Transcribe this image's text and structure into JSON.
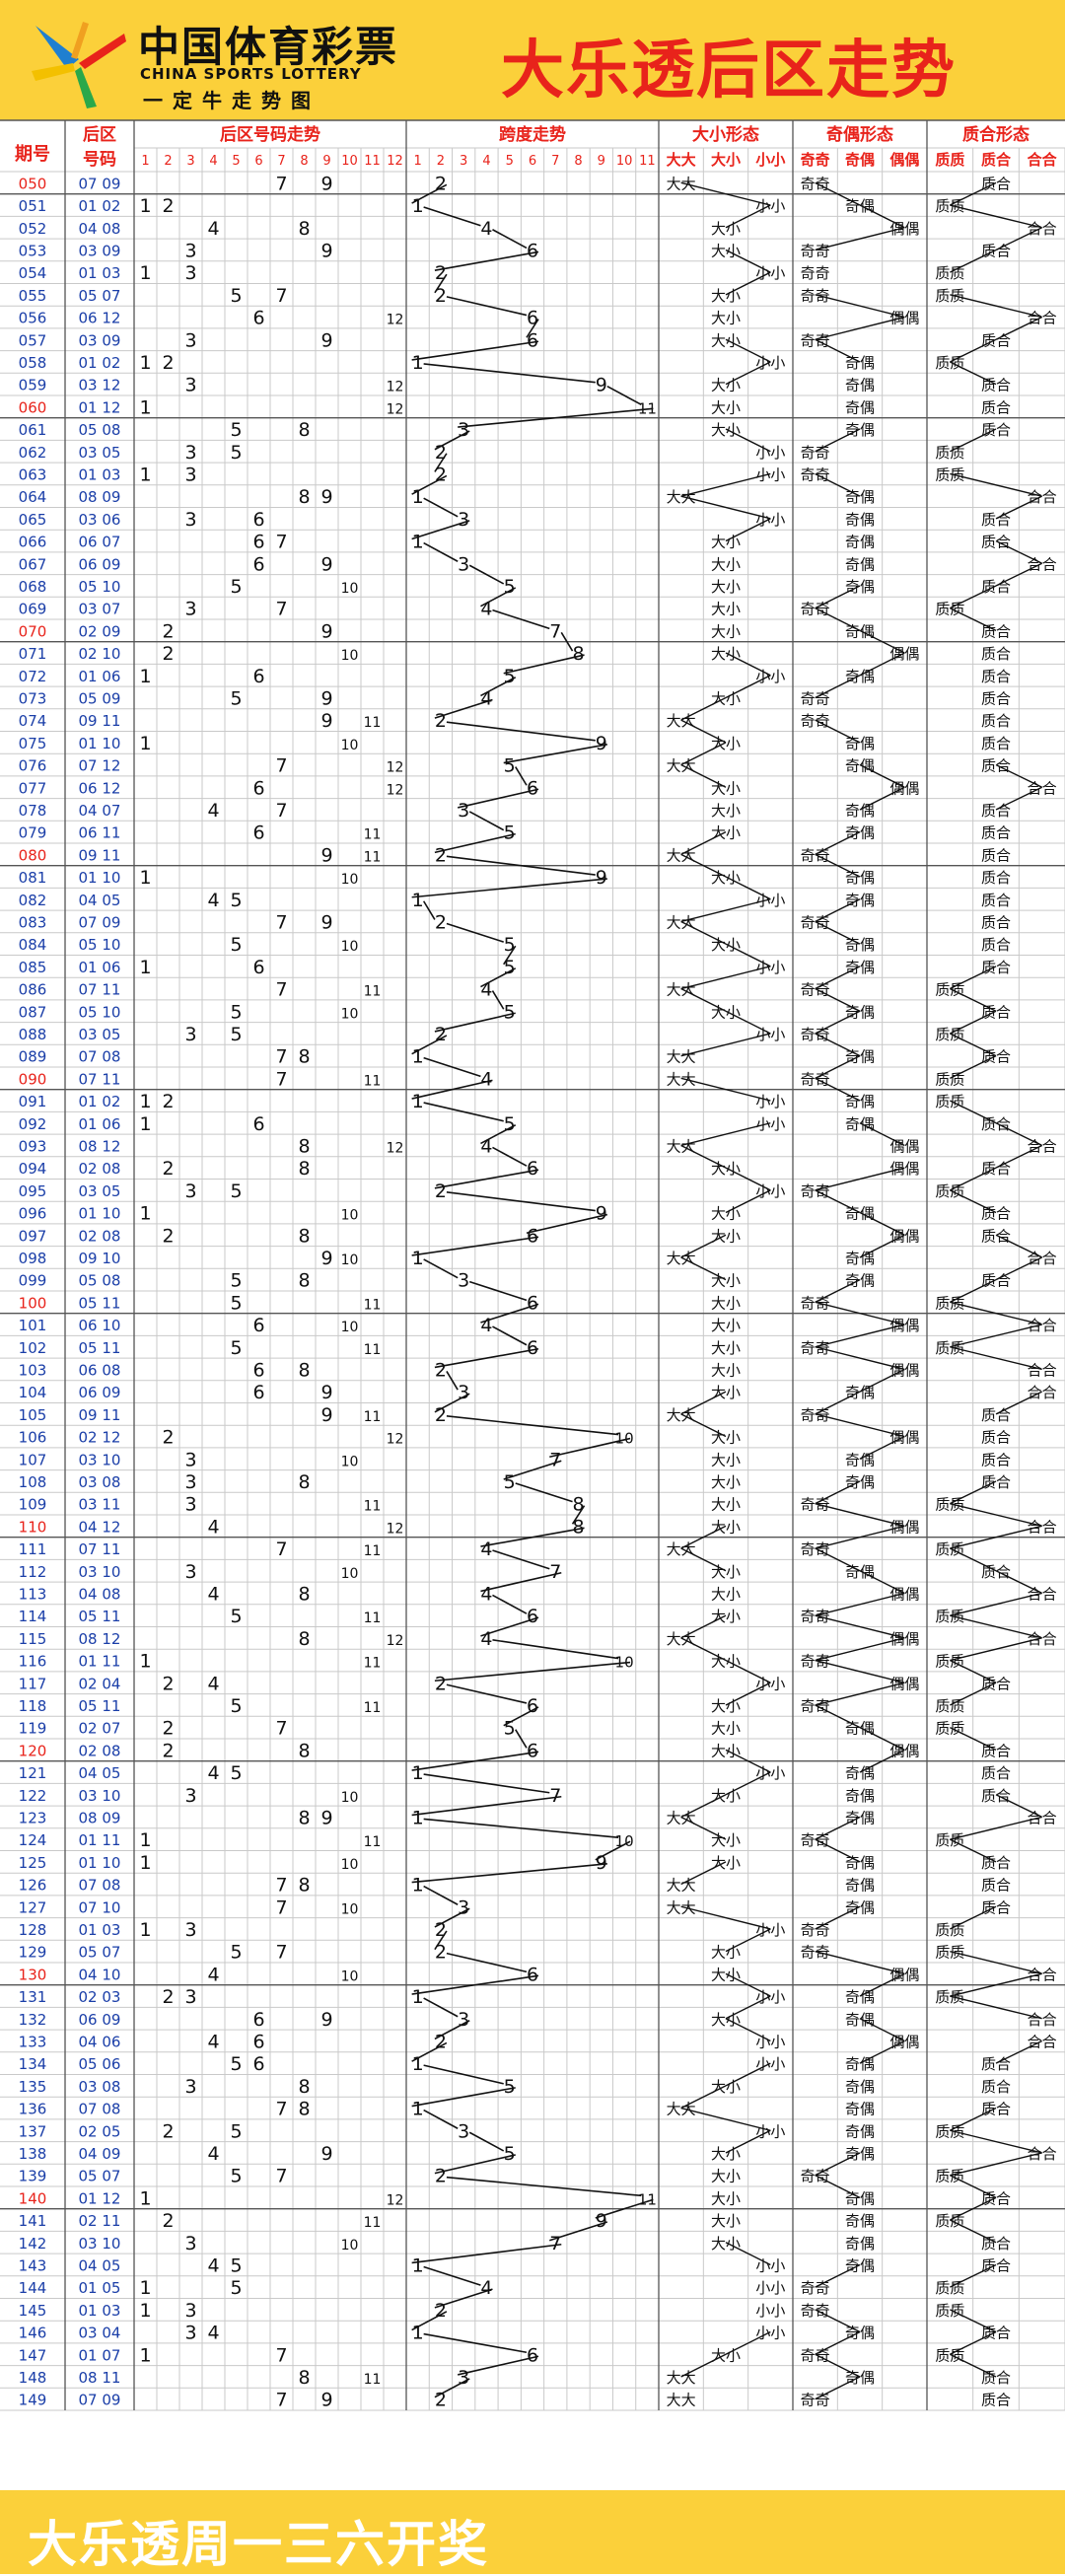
{
  "header": {
    "logo_cn": "中国体育彩票",
    "logo_en": "CHINA SPORTS LOTTERY",
    "logo_slogan": "一定牛走势图",
    "title": "大乐透后区走势"
  },
  "footer": {
    "text": "大乐透周一三六开奖"
  },
  "colors": {
    "header_bg": "#fbd03a",
    "title_red": "#e8231b",
    "period_blue": "#1a3ea8",
    "header_text_red": "#e8231b"
  },
  "columns": {
    "period": "期号",
    "back_number_top": "后区",
    "back_number_bottom": "号码",
    "trend": "后区号码走势",
    "span": "跨度走势",
    "size": "大小形态",
    "parity": "奇偶形态",
    "prime": "质合形态",
    "trend_ticks": [
      "1",
      "2",
      "3",
      "4",
      "5",
      "6",
      "7",
      "8",
      "9",
      "10",
      "11",
      "12"
    ],
    "span_ticks": [
      "1",
      "2",
      "3",
      "4",
      "5",
      "6",
      "7",
      "8",
      "9",
      "10",
      "11"
    ],
    "size_sub": [
      "大大",
      "大小",
      "小小"
    ],
    "parity_sub": [
      "奇奇",
      "奇偶",
      "偶偶"
    ],
    "prime_sub": [
      "质质",
      "质合",
      "合合"
    ]
  },
  "chart_data": {
    "type": "table",
    "title": "大乐透后区走势",
    "rows": [
      {
        "period": "050",
        "a": 7,
        "b": 9
      },
      {
        "period": "051",
        "a": 1,
        "b": 2
      },
      {
        "period": "052",
        "a": 4,
        "b": 8
      },
      {
        "period": "053",
        "a": 3,
        "b": 9
      },
      {
        "period": "054",
        "a": 1,
        "b": 3
      },
      {
        "period": "055",
        "a": 5,
        "b": 7
      },
      {
        "period": "056",
        "a": 6,
        "b": 12
      },
      {
        "period": "057",
        "a": 3,
        "b": 9
      },
      {
        "period": "058",
        "a": 1,
        "b": 2
      },
      {
        "period": "059",
        "a": 3,
        "b": 12
      },
      {
        "period": "060",
        "a": 1,
        "b": 12
      },
      {
        "period": "061",
        "a": 5,
        "b": 8
      },
      {
        "period": "062",
        "a": 3,
        "b": 5
      },
      {
        "period": "063",
        "a": 1,
        "b": 3
      },
      {
        "period": "064",
        "a": 8,
        "b": 9
      },
      {
        "period": "065",
        "a": 3,
        "b": 6
      },
      {
        "period": "066",
        "a": 6,
        "b": 7
      },
      {
        "period": "067",
        "a": 6,
        "b": 9
      },
      {
        "period": "068",
        "a": 5,
        "b": 10
      },
      {
        "period": "069",
        "a": 3,
        "b": 7
      },
      {
        "period": "070",
        "a": 2,
        "b": 9
      },
      {
        "period": "071",
        "a": 2,
        "b": 10
      },
      {
        "period": "072",
        "a": 1,
        "b": 6
      },
      {
        "period": "073",
        "a": 5,
        "b": 9
      },
      {
        "period": "074",
        "a": 9,
        "b": 11
      },
      {
        "period": "075",
        "a": 1,
        "b": 10
      },
      {
        "period": "076",
        "a": 7,
        "b": 12
      },
      {
        "period": "077",
        "a": 6,
        "b": 12
      },
      {
        "period": "078",
        "a": 4,
        "b": 7
      },
      {
        "period": "079",
        "a": 6,
        "b": 11
      },
      {
        "period": "080",
        "a": 9,
        "b": 11
      },
      {
        "period": "081",
        "a": 1,
        "b": 10
      },
      {
        "period": "082",
        "a": 4,
        "b": 5
      },
      {
        "period": "083",
        "a": 7,
        "b": 9
      },
      {
        "period": "084",
        "a": 5,
        "b": 10
      },
      {
        "period": "085",
        "a": 1,
        "b": 6
      },
      {
        "period": "086",
        "a": 7,
        "b": 11
      },
      {
        "period": "087",
        "a": 5,
        "b": 10
      },
      {
        "period": "088",
        "a": 3,
        "b": 5
      },
      {
        "period": "089",
        "a": 7,
        "b": 8
      },
      {
        "period": "090",
        "a": 7,
        "b": 11
      },
      {
        "period": "091",
        "a": 1,
        "b": 2
      },
      {
        "period": "092",
        "a": 1,
        "b": 6
      },
      {
        "period": "093",
        "a": 8,
        "b": 12
      },
      {
        "period": "094",
        "a": 2,
        "b": 8
      },
      {
        "period": "095",
        "a": 3,
        "b": 5
      },
      {
        "period": "096",
        "a": 1,
        "b": 10
      },
      {
        "period": "097",
        "a": 2,
        "b": 8
      },
      {
        "period": "098",
        "a": 9,
        "b": 10
      },
      {
        "period": "099",
        "a": 5,
        "b": 8
      },
      {
        "period": "100",
        "a": 5,
        "b": 11
      },
      {
        "period": "101",
        "a": 6,
        "b": 10
      },
      {
        "period": "102",
        "a": 5,
        "b": 11
      },
      {
        "period": "103",
        "a": 6,
        "b": 8
      },
      {
        "period": "104",
        "a": 6,
        "b": 9
      },
      {
        "period": "105",
        "a": 9,
        "b": 11
      },
      {
        "period": "106",
        "a": 2,
        "b": 12
      },
      {
        "period": "107",
        "a": 3,
        "b": 10
      },
      {
        "period": "108",
        "a": 3,
        "b": 8
      },
      {
        "period": "109",
        "a": 3,
        "b": 11
      },
      {
        "period": "110",
        "a": 4,
        "b": 12
      },
      {
        "period": "111",
        "a": 7,
        "b": 11
      },
      {
        "period": "112",
        "a": 3,
        "b": 10
      },
      {
        "period": "113",
        "a": 4,
        "b": 8
      },
      {
        "period": "114",
        "a": 5,
        "b": 11
      },
      {
        "period": "115",
        "a": 8,
        "b": 12
      },
      {
        "period": "116",
        "a": 1,
        "b": 11
      },
      {
        "period": "117",
        "a": 2,
        "b": 4
      },
      {
        "period": "118",
        "a": 5,
        "b": 11
      },
      {
        "period": "119",
        "a": 2,
        "b": 7
      },
      {
        "period": "120",
        "a": 2,
        "b": 8
      },
      {
        "period": "121",
        "a": 4,
        "b": 5
      },
      {
        "period": "122",
        "a": 3,
        "b": 10
      },
      {
        "period": "123",
        "a": 8,
        "b": 9
      },
      {
        "period": "124",
        "a": 1,
        "b": 11
      },
      {
        "period": "125",
        "a": 1,
        "b": 10
      },
      {
        "period": "126",
        "a": 7,
        "b": 8
      },
      {
        "period": "127",
        "a": 7,
        "b": 10
      },
      {
        "period": "128",
        "a": 1,
        "b": 3
      },
      {
        "period": "129",
        "a": 5,
        "b": 7
      },
      {
        "period": "130",
        "a": 4,
        "b": 10
      },
      {
        "period": "131",
        "a": 2,
        "b": 3
      },
      {
        "period": "132",
        "a": 6,
        "b": 9
      },
      {
        "period": "133",
        "a": 4,
        "b": 6
      },
      {
        "period": "134",
        "a": 5,
        "b": 6
      },
      {
        "period": "135",
        "a": 3,
        "b": 8
      },
      {
        "period": "136",
        "a": 7,
        "b": 8
      },
      {
        "period": "137",
        "a": 2,
        "b": 5
      },
      {
        "period": "138",
        "a": 4,
        "b": 9
      },
      {
        "period": "139",
        "a": 5,
        "b": 7
      },
      {
        "period": "140",
        "a": 1,
        "b": 12
      },
      {
        "period": "141",
        "a": 2,
        "b": 11
      },
      {
        "period": "142",
        "a": 3,
        "b": 10
      },
      {
        "period": "143",
        "a": 4,
        "b": 5
      },
      {
        "period": "144",
        "a": 1,
        "b": 5
      },
      {
        "period": "145",
        "a": 1,
        "b": 3
      },
      {
        "period": "146",
        "a": 3,
        "b": 4
      },
      {
        "period": "147",
        "a": 1,
        "b": 7
      },
      {
        "period": "148",
        "a": 8,
        "b": 11
      },
      {
        "period": "149",
        "a": 7,
        "b": 9
      }
    ],
    "size_labels": [
      "大大",
      "大小",
      "小小"
    ],
    "parity_labels": [
      "奇奇",
      "奇偶",
      "偶偶"
    ],
    "prime_labels": [
      "质质",
      "质合",
      "合合"
    ],
    "red_periods": [
      "050",
      "060",
      "070",
      "080",
      "090",
      "100",
      "110",
      "120",
      "130",
      "140"
    ]
  }
}
